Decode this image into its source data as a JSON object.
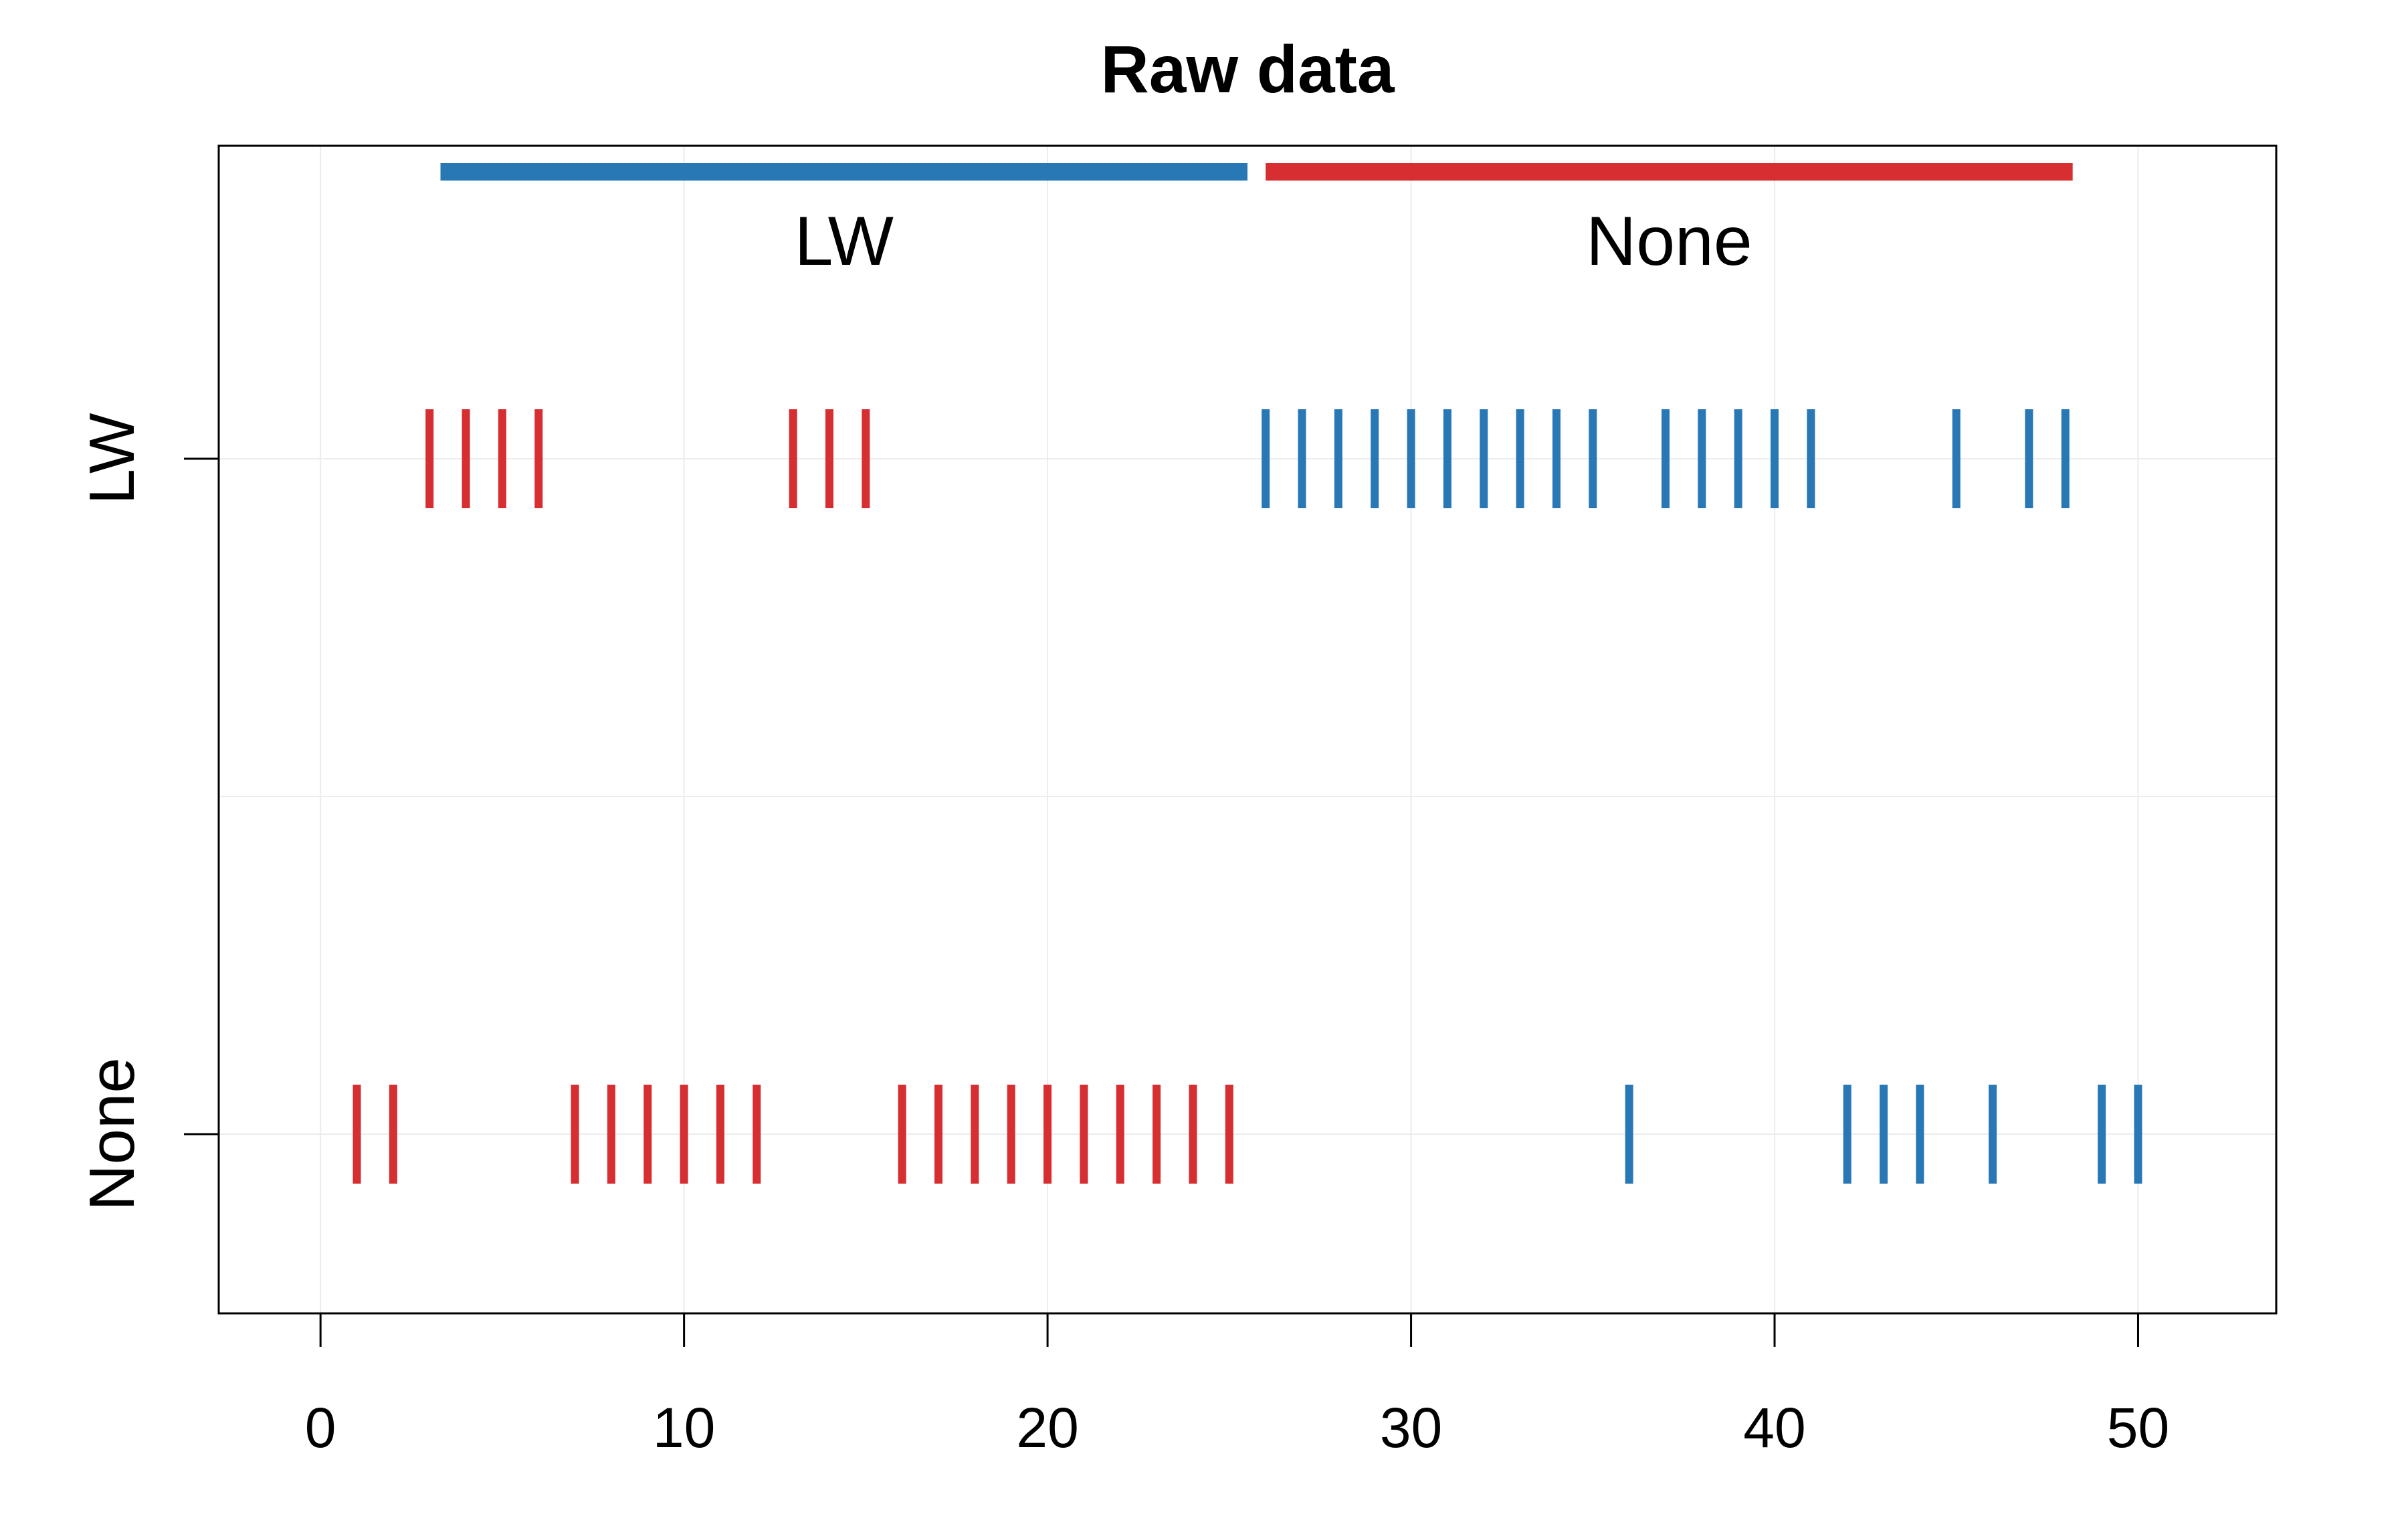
{
  "chart_data": {
    "type": "strip",
    "title": "Raw data",
    "xlabel": "",
    "ylabel": "",
    "xlim": [
      -2.8,
      53.8
    ],
    "x_ticks": [
      "0",
      "10",
      "20",
      "30",
      "40",
      "50"
    ],
    "categories": [
      "LW",
      "None"
    ],
    "grid": true,
    "phases": [
      {
        "label": "LW",
        "start": 3.3,
        "end": 25.5,
        "color": "#2878b5"
      },
      {
        "label": "None",
        "start": 26.0,
        "end": 48.2,
        "color": "#d62e31"
      }
    ],
    "series": [
      {
        "category": "LW",
        "color": "#d62e31",
        "x": [
          3,
          4,
          5,
          6,
          13,
          14,
          15
        ]
      },
      {
        "category": "LW",
        "color": "#2878b5",
        "x": [
          26,
          27,
          28,
          29,
          30,
          31,
          32,
          33,
          34,
          35,
          37,
          38,
          39,
          40,
          41,
          45,
          47,
          48
        ]
      },
      {
        "category": "None",
        "color": "#d62e31",
        "x": [
          1,
          2,
          7,
          8,
          9,
          10,
          11,
          12,
          16,
          17,
          18,
          19,
          20,
          21,
          22,
          23,
          24,
          25
        ]
      },
      {
        "category": "None",
        "color": "#2878b5",
        "x": [
          36,
          42,
          43,
          44,
          46,
          49,
          50
        ]
      }
    ]
  }
}
